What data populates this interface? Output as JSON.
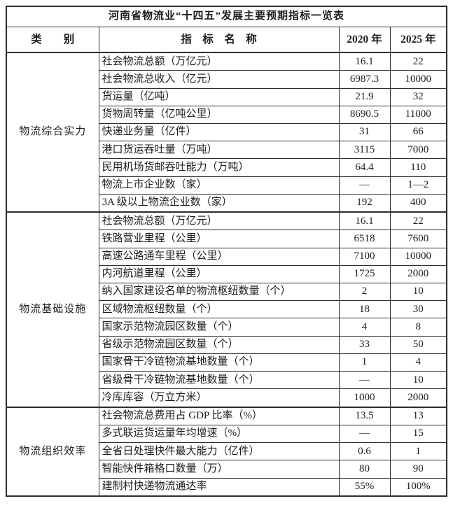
{
  "page": {
    "background_color": "#ffffff",
    "text_color": "#1c1c1c",
    "border_color": "#2d2d2d"
  },
  "table": {
    "title": "河南省物流业“十四五”发展主要预期指标一览表",
    "columns": {
      "category": "类　　别",
      "indicator": "指　标　名　称",
      "year_2020": "2020 年",
      "year_2025": "2025 年"
    },
    "sections": [
      {
        "category": "物流综合实力",
        "rows": [
          {
            "indicator": "社会物流总额（万亿元）",
            "v2020": "16.1",
            "v2025": "22"
          },
          {
            "indicator": "社会物流总收入（亿元）",
            "v2020": "6987.3",
            "v2025": "10000"
          },
          {
            "indicator": "货运量（亿吨）",
            "v2020": "21.9",
            "v2025": "32"
          },
          {
            "indicator": "货物周转量（亿吨公里）",
            "v2020": "8690.5",
            "v2025": "11000"
          },
          {
            "indicator": "快递业务量（亿件）",
            "v2020": "31",
            "v2025": "66"
          },
          {
            "indicator": "港口货运吞吐量（万吨）",
            "v2020": "3115",
            "v2025": "7000"
          },
          {
            "indicator": "民用机场货邮吞吐能力（万吨）",
            "v2020": "64.4",
            "v2025": "110"
          },
          {
            "indicator": "物流上市企业数（家）",
            "v2020": "—",
            "v2025": "1—2"
          },
          {
            "indicator": "3A 级以上物流企业数（家）",
            "v2020": "192",
            "v2025": "400"
          }
        ]
      },
      {
        "category": "物流基础设施",
        "rows": [
          {
            "indicator": "社会物流总额（万亿元）",
            "v2020": "16.1",
            "v2025": "22"
          },
          {
            "indicator": "铁路营业里程（公里）",
            "v2020": "6518",
            "v2025": "7600"
          },
          {
            "indicator": "高速公路通车里程（公里）",
            "v2020": "7100",
            "v2025": "10000"
          },
          {
            "indicator": "内河航道里程（公里）",
            "v2020": "1725",
            "v2025": "2000"
          },
          {
            "indicator": "纳入国家建设名单的物流枢纽数量（个）",
            "v2020": "2",
            "v2025": "10"
          },
          {
            "indicator": "区域物流枢纽数量（个）",
            "v2020": "18",
            "v2025": "30"
          },
          {
            "indicator": "国家示范物流园区数量（个）",
            "v2020": "4",
            "v2025": "8"
          },
          {
            "indicator": "省级示范物流园区数量（个）",
            "v2020": "33",
            "v2025": "50"
          },
          {
            "indicator": "国家骨干冷链物流基地数量（个）",
            "v2020": "1",
            "v2025": "4"
          },
          {
            "indicator": "省级骨干冷链物流基地数量（个）",
            "v2020": "—",
            "v2025": "10"
          },
          {
            "indicator": "冷库库容（万立方米）",
            "v2020": "1000",
            "v2025": "2000"
          }
        ]
      },
      {
        "category": "物流组织效率",
        "rows": [
          {
            "indicator": "社会物流总费用占 GDP 比率（%）",
            "v2020": "13.5",
            "v2025": "13"
          },
          {
            "indicator": "多式联运货运量年均增速（%）",
            "v2020": "—",
            "v2025": "15"
          },
          {
            "indicator": "全省日处理快件最大能力（亿件）",
            "v2020": "0.6",
            "v2025": "1"
          },
          {
            "indicator": "智能快件箱格口数量（万）",
            "v2020": "80",
            "v2025": "90"
          },
          {
            "indicator": "建制村快递物流通达率",
            "v2020": "55%",
            "v2025": "100%"
          }
        ]
      }
    ]
  }
}
